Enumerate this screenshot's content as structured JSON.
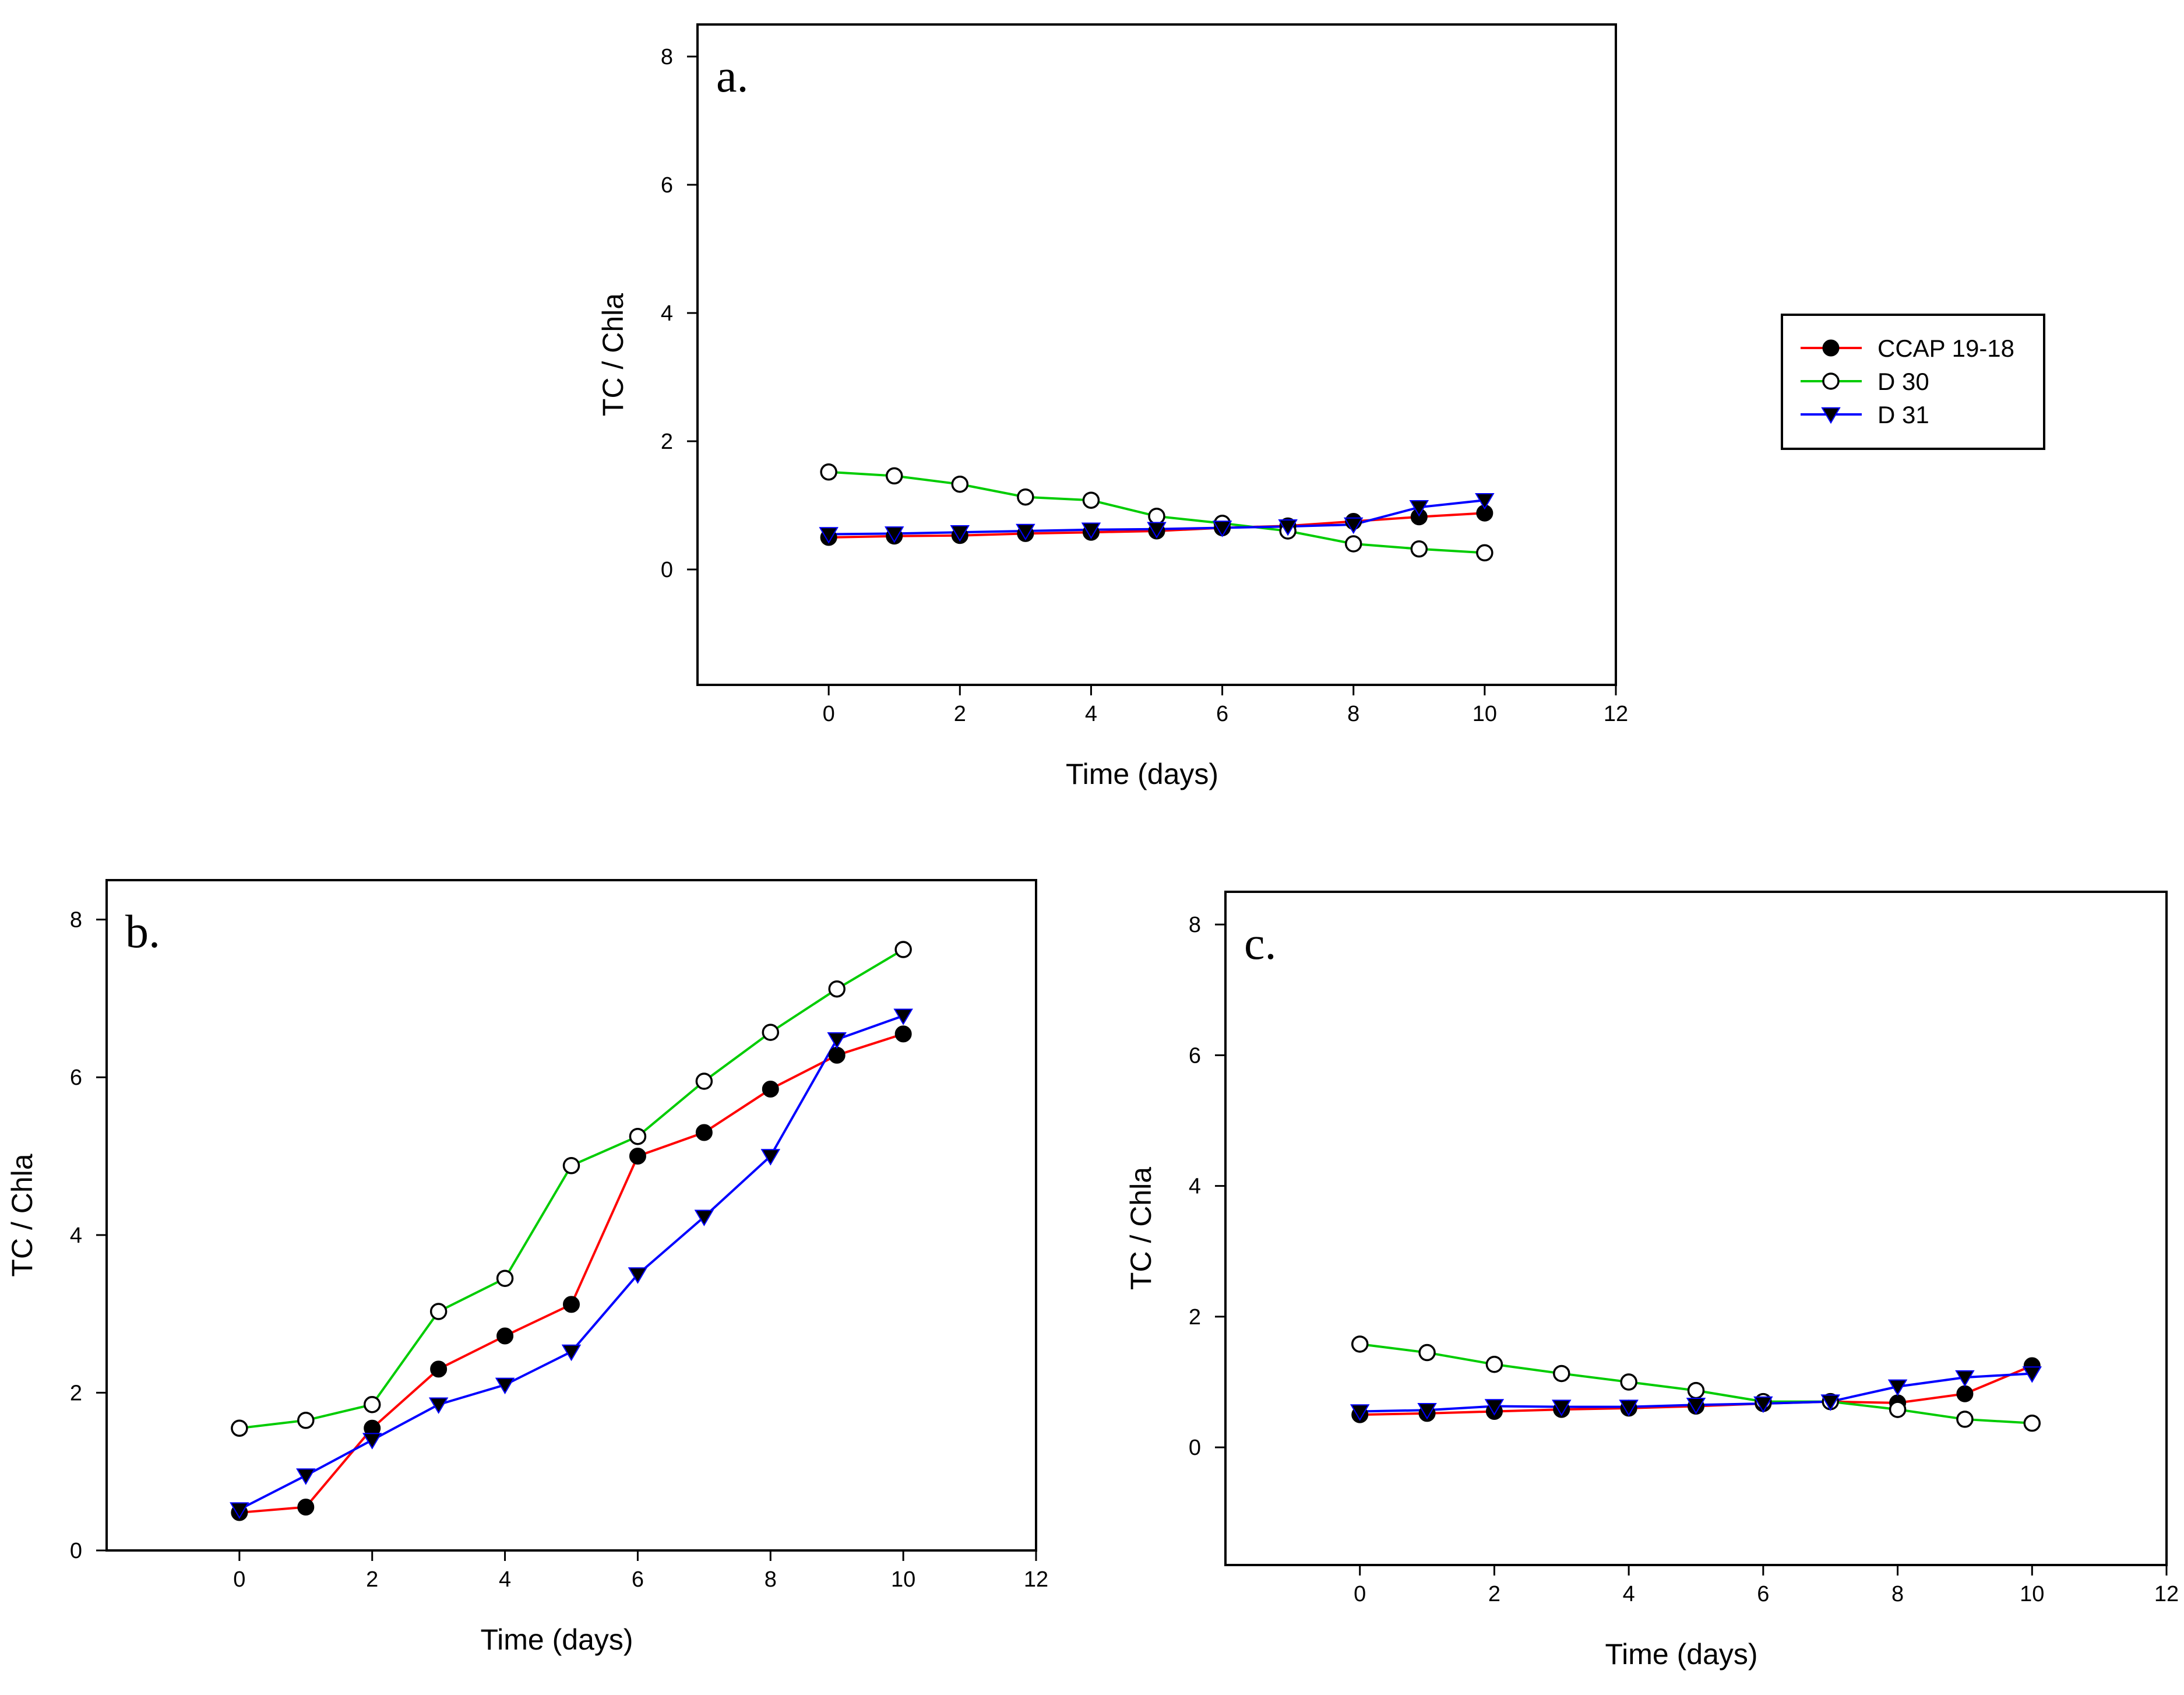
{
  "chart_data": [
    {
      "type": "line",
      "panel_label": "a.",
      "xlabel": "Time (days)",
      "ylabel": "TC / Chla",
      "xlim": [
        -2,
        12
      ],
      "ylim": [
        -1.8,
        8.5
      ],
      "xticks": [
        0,
        2,
        4,
        6,
        8,
        10,
        12
      ],
      "yticks": [
        0,
        2,
        4,
        6,
        8
      ],
      "x": [
        0,
        1,
        2,
        3,
        4,
        5,
        6,
        7,
        8,
        9,
        10
      ],
      "series": [
        {
          "name": "CCAP 19-18",
          "color": "#ff0000",
          "marker": "filled-circle",
          "values": [
            0.5,
            0.52,
            0.53,
            0.56,
            0.58,
            0.6,
            0.65,
            0.68,
            0.75,
            0.82,
            0.88
          ]
        },
        {
          "name": "D 30",
          "color": "#00cc00",
          "marker": "open-circle",
          "values": [
            1.52,
            1.46,
            1.33,
            1.13,
            1.08,
            0.83,
            0.72,
            0.6,
            0.4,
            0.32,
            0.26
          ]
        },
        {
          "name": "D 31",
          "color": "#0000ff",
          "marker": "filled-triangle-down",
          "values": [
            0.55,
            0.56,
            0.58,
            0.6,
            0.62,
            0.63,
            0.65,
            0.67,
            0.7,
            0.97,
            1.08
          ]
        }
      ]
    },
    {
      "type": "line",
      "panel_label": "b.",
      "xlabel": "Time (days)",
      "ylabel": "TC / Chla",
      "xlim": [
        -2,
        12
      ],
      "ylim": [
        0,
        8.5
      ],
      "xticks": [
        0,
        2,
        4,
        6,
        8,
        10,
        12
      ],
      "yticks": [
        0,
        2,
        4,
        6,
        8
      ],
      "x": [
        0,
        1,
        2,
        3,
        4,
        5,
        6,
        7,
        8,
        9,
        10
      ],
      "series": [
        {
          "name": "CCAP 19-18",
          "color": "#ff0000",
          "marker": "filled-circle",
          "values": [
            0.48,
            0.55,
            1.55,
            2.3,
            2.72,
            3.12,
            5.0,
            5.3,
            5.85,
            6.28,
            6.55
          ]
        },
        {
          "name": "D 30",
          "color": "#00cc00",
          "marker": "open-circle",
          "values": [
            1.55,
            1.65,
            1.85,
            3.03,
            3.45,
            4.88,
            5.25,
            5.95,
            6.57,
            7.12,
            7.62
          ]
        },
        {
          "name": "D 31",
          "color": "#0000ff",
          "marker": "filled-triangle-down",
          "values": [
            0.52,
            0.95,
            1.4,
            1.85,
            2.1,
            2.52,
            3.5,
            4.23,
            5.0,
            6.48,
            6.78
          ]
        }
      ]
    },
    {
      "type": "line",
      "panel_label": "c.",
      "xlabel": "Time (days)",
      "ylabel": "TC / Chla",
      "xlim": [
        -2,
        12
      ],
      "ylim": [
        -1.8,
        8.5
      ],
      "xticks": [
        0,
        2,
        4,
        6,
        8,
        10,
        12
      ],
      "yticks": [
        0,
        2,
        4,
        6,
        8
      ],
      "x": [
        0,
        1,
        2,
        3,
        4,
        5,
        6,
        7,
        8,
        9,
        10
      ],
      "series": [
        {
          "name": "CCAP 19-18",
          "color": "#ff0000",
          "marker": "filled-circle",
          "values": [
            0.5,
            0.52,
            0.55,
            0.58,
            0.6,
            0.63,
            0.67,
            0.7,
            0.68,
            0.82,
            1.25
          ]
        },
        {
          "name": "D 30",
          "color": "#00cc00",
          "marker": "open-circle",
          "values": [
            1.58,
            1.45,
            1.27,
            1.13,
            1.0,
            0.87,
            0.7,
            0.7,
            0.58,
            0.43,
            0.37
          ]
        },
        {
          "name": "D 31",
          "color": "#0000ff",
          "marker": "filled-triangle-down",
          "values": [
            0.55,
            0.57,
            0.63,
            0.62,
            0.62,
            0.65,
            0.67,
            0.7,
            0.93,
            1.07,
            1.13
          ]
        }
      ]
    }
  ],
  "legend": {
    "placement": "right of panel a",
    "entries": [
      {
        "label": "CCAP 19-18",
        "color": "#ff0000",
        "marker": "filled-circle"
      },
      {
        "label": "D 30",
        "color": "#00cc00",
        "marker": "open-circle"
      },
      {
        "label": "D 31",
        "color": "#0000ff",
        "marker": "filled-triangle-down"
      }
    ]
  }
}
